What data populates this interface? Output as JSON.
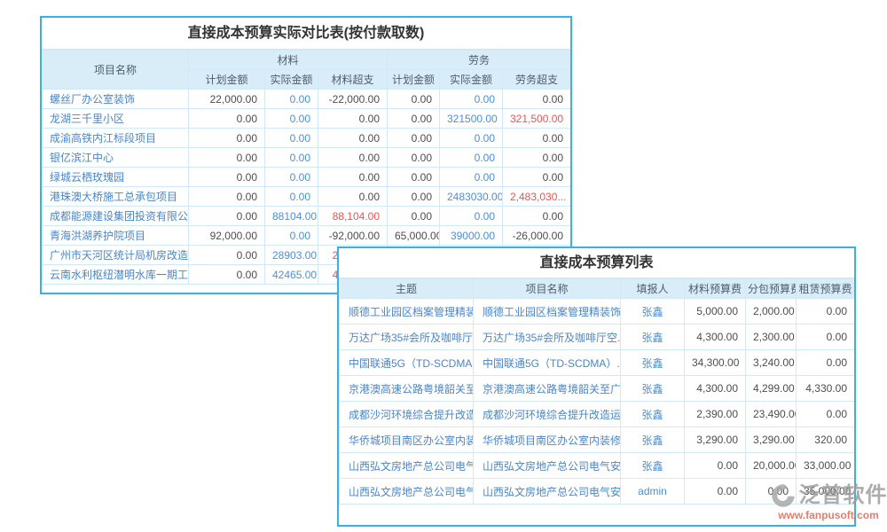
{
  "comparison_table": {
    "title": "直接成本预算实际对比表(按付款取数)",
    "col_project": "项目名称",
    "group_material": "材料",
    "group_labor": "劳务",
    "sub_headers": [
      "计划金额",
      "实际金额",
      "材料超支",
      "计划金额",
      "实际金额",
      "劳务超支"
    ],
    "rows": [
      {
        "name": "螺丝厂办公室装饰",
        "cells": [
          [
            "22,000.00",
            "dark"
          ],
          [
            "0.00",
            "blue"
          ],
          [
            "-22,000.00",
            "dark"
          ],
          [
            "0.00",
            "dark"
          ],
          [
            "0.00",
            "blue"
          ],
          [
            "0.00",
            "dark"
          ]
        ]
      },
      {
        "name": "龙湖三千里小区",
        "cells": [
          [
            "0.00",
            "dark"
          ],
          [
            "0.00",
            "blue"
          ],
          [
            "0.00",
            "dark"
          ],
          [
            "0.00",
            "dark"
          ],
          [
            "321500.00",
            "blue"
          ],
          [
            "321,500.00",
            "red"
          ]
        ]
      },
      {
        "name": "成渝高铁内江标段项目",
        "cells": [
          [
            "0.00",
            "dark"
          ],
          [
            "0.00",
            "blue"
          ],
          [
            "0.00",
            "dark"
          ],
          [
            "0.00",
            "dark"
          ],
          [
            "0.00",
            "blue"
          ],
          [
            "0.00",
            "dark"
          ]
        ]
      },
      {
        "name": "银亿滨江中心",
        "cells": [
          [
            "0.00",
            "dark"
          ],
          [
            "0.00",
            "blue"
          ],
          [
            "0.00",
            "dark"
          ],
          [
            "0.00",
            "dark"
          ],
          [
            "0.00",
            "blue"
          ],
          [
            "0.00",
            "dark"
          ]
        ]
      },
      {
        "name": "绿城云栖玫瑰园",
        "cells": [
          [
            "0.00",
            "dark"
          ],
          [
            "0.00",
            "blue"
          ],
          [
            "0.00",
            "dark"
          ],
          [
            "0.00",
            "dark"
          ],
          [
            "0.00",
            "blue"
          ],
          [
            "0.00",
            "dark"
          ]
        ]
      },
      {
        "name": "港珠澳大桥施工总承包项目",
        "cells": [
          [
            "0.00",
            "dark"
          ],
          [
            "0.00",
            "blue"
          ],
          [
            "0.00",
            "dark"
          ],
          [
            "0.00",
            "dark"
          ],
          [
            "2483030.00",
            "blue"
          ],
          [
            "2,483,030...",
            "red"
          ]
        ]
      },
      {
        "name": "成都能源建设集团投资有限公司临",
        "cells": [
          [
            "0.00",
            "dark"
          ],
          [
            "88104.00",
            "blue"
          ],
          [
            "88,104.00",
            "red"
          ],
          [
            "0.00",
            "dark"
          ],
          [
            "0.00",
            "blue"
          ],
          [
            "0.00",
            "dark"
          ]
        ]
      },
      {
        "name": "青海洪湖养护院项目",
        "cells": [
          [
            "92,000.00",
            "dark"
          ],
          [
            "0.00",
            "blue"
          ],
          [
            "-92,000.00",
            "dark"
          ],
          [
            "65,000.00",
            "dark"
          ],
          [
            "39000.00",
            "blue"
          ],
          [
            "-26,000.00",
            "dark"
          ]
        ]
      },
      {
        "name": "广州市天河区统计局机房改造项目",
        "cells": [
          [
            "0.00",
            "dark"
          ],
          [
            "28903.00",
            "blue"
          ],
          [
            "28,903.00",
            "red"
          ],
          [
            "",
            "dark"
          ],
          [
            "",
            "blue"
          ],
          [
            "",
            "dark"
          ]
        ]
      },
      {
        "name": "云南水利枢纽潜明水库一期工程施",
        "cells": [
          [
            "0.00",
            "dark"
          ],
          [
            "42465.00",
            "blue"
          ],
          [
            "42,465.00",
            "red"
          ],
          [
            "",
            "dark"
          ],
          [
            "",
            "blue"
          ],
          [
            "",
            "dark"
          ]
        ]
      }
    ]
  },
  "list_table": {
    "title": "直接成本预算列表",
    "headers": [
      "主题",
      "项目名称",
      "填报人",
      "材料预算费",
      "分包预算费",
      "租赁预算费"
    ],
    "rows": [
      {
        "subject": "顺德工业园区档案管理精装饰...",
        "project": "顺德工业园区档案管理精装饰...",
        "reporter": "张鑫",
        "material": "5,000.00",
        "subcontract": "2,000.00",
        "rental": "0.00"
      },
      {
        "subject": "万达广场35#会所及咖啡厅空...",
        "project": "万达广场35#会所及咖啡厅空...",
        "reporter": "张鑫",
        "material": "4,300.00",
        "subcontract": "2,300.00",
        "rental": "0.00"
      },
      {
        "subject": "中国联通5G（TD-SCDMA）网...",
        "project": "中国联通5G（TD-SCDMA）...",
        "reporter": "张鑫",
        "material": "34,300.00",
        "subcontract": "3,240.00",
        "rental": "0.00"
      },
      {
        "subject": "京港澳高速公路粤境韶关至广...",
        "project": "京港澳高速公路粤境韶关至广...",
        "reporter": "张鑫",
        "material": "4,300.00",
        "subcontract": "4,299.00",
        "rental": "4,330.00"
      },
      {
        "subject": "成都沙河环境综合提升改造运...",
        "project": "成都沙河环境综合提升改造运...",
        "reporter": "张鑫",
        "material": "2,390.00",
        "subcontract": "23,490.00",
        "rental": "0.00"
      },
      {
        "subject": "华侨城项目南区办公室内装修...",
        "project": "华侨城项目南区办公室内装修...",
        "reporter": "张鑫",
        "material": "3,290.00",
        "subcontract": "3,290.00",
        "rental": "320.00"
      },
      {
        "subject": "山西弘文房地产总公司电气安...",
        "project": "山西弘文房地产总公司电气安...",
        "reporter": "张鑫",
        "material": "0.00",
        "subcontract": "20,000.00",
        "rental": "33,000.00"
      },
      {
        "subject": "山西弘文房地产总公司电气安...",
        "project": "山西弘文房地产总公司电气安...",
        "reporter": "admin",
        "material": "0.00",
        "subcontract": "0.00",
        "rental": "35,000.00"
      }
    ]
  },
  "watermark": {
    "brand": "泛普软件",
    "url": "www.fanpusoft.com"
  },
  "colors": {
    "panel_border": "#38b1ea",
    "grid_line": "#d2e9f7",
    "header_bg": "#d9edf9",
    "header_text": "#4e5d6c",
    "link_blue": "#4a86c8",
    "value_blue": "#4a90d9",
    "value_red": "#f05353",
    "value_dark": "#4d4d4d",
    "watermark_gray": "#9a9a9a",
    "watermark_url_red": "#e2604c"
  }
}
